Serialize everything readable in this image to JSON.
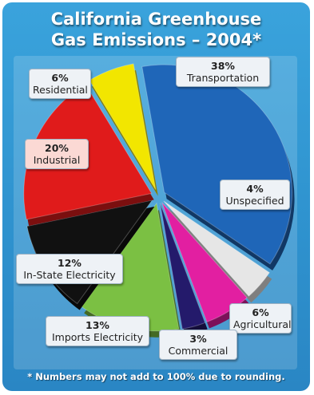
{
  "title_lines": [
    "California Greenhouse",
    "Gas Emissions – 2004*"
  ],
  "footnote": "* Numbers may not add to 100% due to rounding.",
  "chart_data": {
    "type": "pie",
    "title": "California Greenhouse Gas Emissions – 2004*",
    "slices": [
      {
        "label": "Transportation",
        "pct_label": "38%",
        "value": 38,
        "color": "#1f66b8"
      },
      {
        "label": "Unspecified",
        "pct_label": "4%",
        "value": 4,
        "color": "#e6e6e6"
      },
      {
        "label": "Agricultural",
        "pct_label": "6%",
        "value": 6,
        "color": "#e21fa1"
      },
      {
        "label": "Commercial",
        "pct_label": "3%",
        "value": 3,
        "color": "#241a6b"
      },
      {
        "label": "Imports Electricity",
        "pct_label": "13%",
        "value": 13,
        "color": "#7bc043"
      },
      {
        "label": "In-State Electricity",
        "pct_label": "12%",
        "value": 12,
        "color": "#111111"
      },
      {
        "label": "Industrial",
        "pct_label": "20%",
        "value": 20,
        "color": "#e01b1b"
      },
      {
        "label": "Residential",
        "pct_label": "6%",
        "value": 6,
        "color": "#f2e600"
      }
    ],
    "footnote": "* Numbers may not add to 100% due to rounding."
  }
}
